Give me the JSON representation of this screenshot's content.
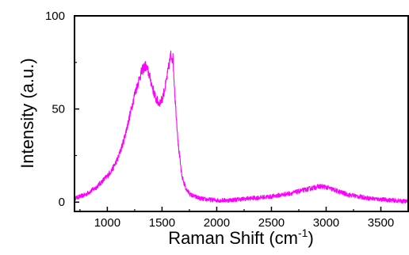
{
  "chart_data": {
    "type": "line",
    "title": "",
    "xlabel": "Raman Shift (cm",
    "xlabel_sup": "-1",
    "xlabel_close": ")",
    "ylabel": "Intensity (a.u.)",
    "xlim": [
      700,
      3750
    ],
    "ylim": [
      -5,
      100
    ],
    "x_ticks": [
      1000,
      1500,
      2000,
      2500,
      3000,
      3500
    ],
    "x_tick_labels": [
      "1000",
      "1500",
      "2000",
      "2500",
      "3000",
      "3500"
    ],
    "y_ticks": [
      0,
      50,
      100
    ],
    "y_tick_labels": [
      "0",
      "50",
      "100"
    ],
    "grid": false,
    "legend": "none",
    "series": [
      {
        "color": "#ff00ff",
        "x": [
          700,
          750,
          800,
          850,
          900,
          950,
          1000,
          1050,
          1100,
          1150,
          1200,
          1250,
          1300,
          1330,
          1350,
          1380,
          1410,
          1440,
          1470,
          1500,
          1530,
          1560,
          1580,
          1600,
          1620,
          1650,
          1680,
          1720,
          1760,
          1800,
          1850,
          1900,
          2000,
          2100,
          2200,
          2300,
          2400,
          2500,
          2600,
          2700,
          2800,
          2900,
          2950,
          3000,
          3100,
          3200,
          3300,
          3400,
          3500,
          3600,
          3700,
          3750
        ],
        "y": [
          2,
          3,
          4,
          6,
          8,
          11,
          14,
          18,
          24,
          33,
          45,
          58,
          68,
          72,
          73,
          69,
          62,
          56,
          53,
          55,
          62,
          72,
          79,
          77,
          55,
          30,
          14,
          7,
          4,
          3,
          2,
          1.5,
          1,
          1,
          1.5,
          2,
          2.5,
          3,
          4,
          5,
          6.5,
          8,
          8.5,
          8,
          6,
          4,
          3,
          2,
          1.5,
          1,
          0.5,
          0.5
        ]
      }
    ]
  }
}
